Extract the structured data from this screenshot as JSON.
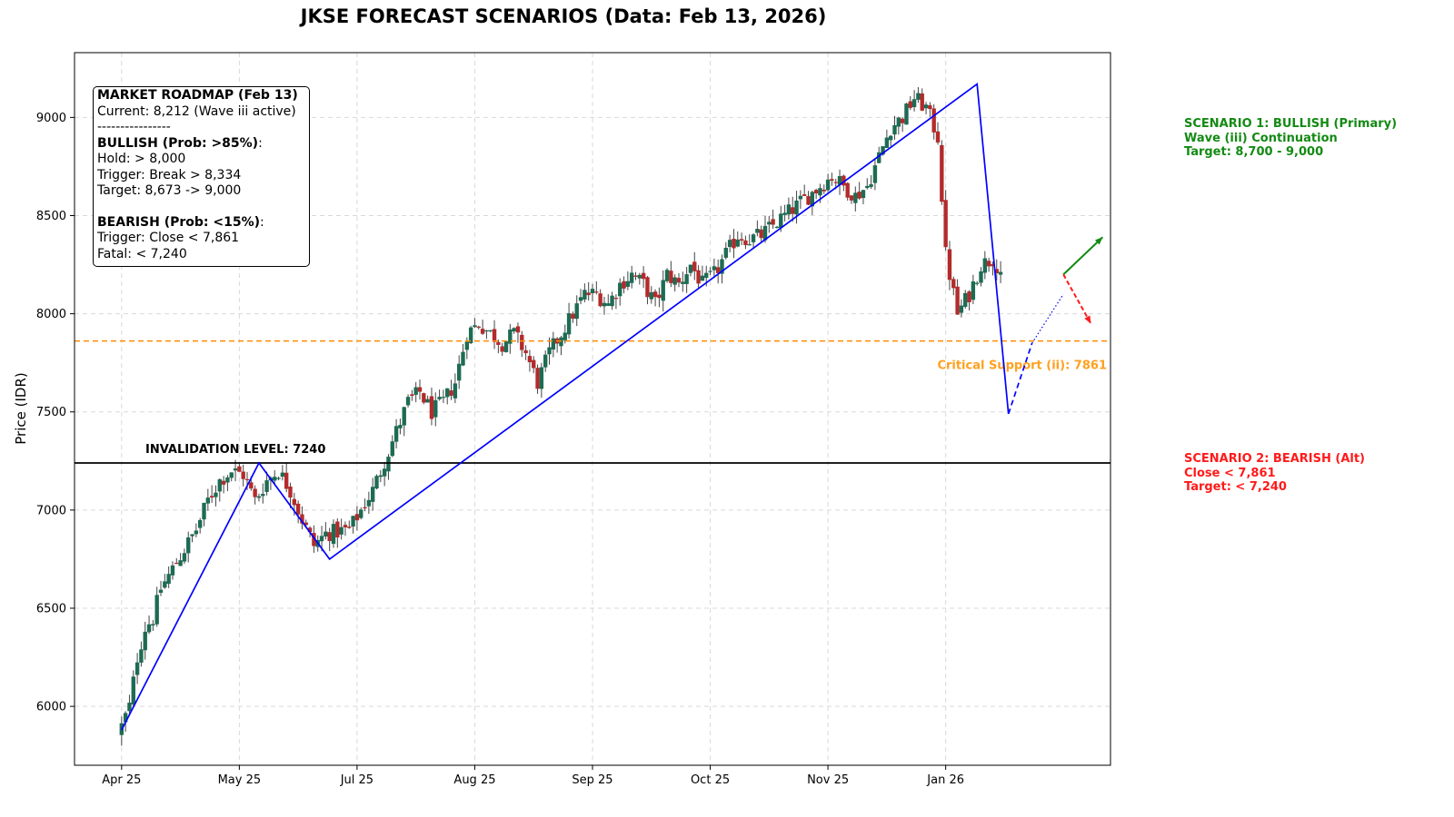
{
  "chart_data": {
    "type": "candlestick",
    "title": "JKSE FORECAST SCENARIOS (Data: Feb 13, 2026)",
    "ylabel": "Price (IDR)",
    "xlabel": "",
    "ylim": [
      5700,
      9330
    ],
    "y_ticks": [
      6000,
      6500,
      7000,
      7500,
      8000,
      8500,
      9000
    ],
    "x_ticks": [
      "Apr 25",
      "May 25",
      "Jul 25",
      "Aug 25",
      "Sep 25",
      "Oct 25",
      "Nov 25",
      "Jan 26"
    ],
    "x_tick_days": [
      0,
      30,
      60,
      90,
      120,
      150,
      180,
      210
    ],
    "x_range_days": [
      -12,
      252
    ],
    "grid": true,
    "up_color": "#1e6b54",
    "down_color": "#b32b2b",
    "ohlc_anchors": [
      [
        0,
        5900
      ],
      [
        2,
        6000
      ],
      [
        4,
        6250
      ],
      [
        6,
        6400
      ],
      [
        8,
        6450
      ],
      [
        10,
        6600
      ],
      [
        13,
        6700
      ],
      [
        16,
        6800
      ],
      [
        19,
        6900
      ],
      [
        22,
        7050
      ],
      [
        25,
        7150
      ],
      [
        28,
        7200
      ],
      [
        31,
        7180
      ],
      [
        34,
        7050
      ],
      [
        37,
        7150
      ],
      [
        40,
        7200
      ],
      [
        43,
        7100
      ],
      [
        46,
        6950
      ],
      [
        49,
        6820
      ],
      [
        52,
        6880
      ],
      [
        55,
        6890
      ],
      [
        58,
        6900
      ],
      [
        61,
        7000
      ],
      [
        64,
        7100
      ],
      [
        67,
        7250
      ],
      [
        70,
        7400
      ],
      [
        73,
        7550
      ],
      [
        76,
        7600
      ],
      [
        79,
        7500
      ],
      [
        82,
        7550
      ],
      [
        85,
        7650
      ],
      [
        88,
        7900
      ],
      [
        91,
        7950
      ],
      [
        94,
        7900
      ],
      [
        97,
        7850
      ],
      [
        100,
        7900
      ],
      [
        103,
        7800
      ],
      [
        106,
        7650
      ],
      [
        109,
        7800
      ],
      [
        112,
        7900
      ],
      [
        115,
        8000
      ],
      [
        118,
        8100
      ],
      [
        121,
        8100
      ],
      [
        124,
        8050
      ],
      [
        127,
        8150
      ],
      [
        130,
        8200
      ],
      [
        133,
        8150
      ],
      [
        136,
        8050
      ],
      [
        139,
        8200
      ],
      [
        142,
        8150
      ],
      [
        145,
        8250
      ],
      [
        148,
        8150
      ],
      [
        151,
        8200
      ],
      [
        154,
        8300
      ],
      [
        157,
        8400
      ],
      [
        160,
        8380
      ],
      [
        163,
        8400
      ],
      [
        166,
        8450
      ],
      [
        169,
        8500
      ],
      [
        172,
        8550
      ],
      [
        175,
        8600
      ],
      [
        178,
        8650
      ],
      [
        181,
        8700
      ],
      [
        184,
        8650
      ],
      [
        187,
        8600
      ],
      [
        190,
        8650
      ],
      [
        193,
        8800
      ],
      [
        196,
        8950
      ],
      [
        199,
        9000
      ],
      [
        202,
        9100
      ],
      [
        205,
        9050
      ],
      [
        208,
        8900
      ],
      [
        210,
        8300
      ],
      [
        213,
        8000
      ],
      [
        216,
        8100
      ],
      [
        219,
        8250
      ],
      [
        222,
        8280
      ],
      [
        224,
        8220
      ]
    ],
    "price_lines": [
      {
        "name": "Invalidation Level",
        "value": 7240,
        "label": "INVALIDATION LEVEL: 7240",
        "color": "#000000",
        "style": "solid"
      },
      {
        "name": "Critical Support (ii)",
        "value": 7861,
        "label": "Critical Support (ii): 7861",
        "color": "#ff8c00",
        "style": "dashed"
      }
    ],
    "wave_path": [
      [
        0,
        5880
      ],
      [
        35,
        7240
      ],
      [
        53,
        6750
      ],
      [
        218,
        9170
      ],
      [
        226,
        7490
      ]
    ],
    "wave_projection": [
      [
        226,
        7490
      ],
      [
        232,
        7850
      ]
    ],
    "wave_dotted": [
      [
        232,
        7850
      ],
      [
        240,
        8100
      ]
    ],
    "scenario_arrows": [
      {
        "name": "bullish",
        "color": "#138a13",
        "from": [
          240,
          8200
        ],
        "to": [
          250,
          8390
        ]
      },
      {
        "name": "bearish",
        "color": "#ff1a1a",
        "from": [
          240,
          8200
        ],
        "to": [
          247,
          7950
        ]
      }
    ]
  },
  "roadmap": {
    "title": "MARKET ROADMAP (Feb 13)",
    "current": "Current: 8,212 (Wave iii active)",
    "divider": "----------------",
    "bullish_head": "BULLISH (Prob: >85%)",
    "bullish_colon": ":",
    "hold": "Hold: > 8,000",
    "trigger_bull": "Trigger: Break > 8,334",
    "target_bull": "Target: 8,673 -> 9,000",
    "bearish_head": "BEARISH (Prob: <15%)",
    "bearish_colon": ":",
    "trigger_bear": "Trigger: Close < 7,861",
    "fatal": "Fatal: < 7,240"
  },
  "scenarios": {
    "s1": {
      "line1": "SCENARIO 1: BULLISH (Primary)",
      "line2": "Wave (iii) Continuation",
      "line3": "Target: 8,700 - 9,000",
      "color": "#138a13"
    },
    "s2": {
      "line1": "SCENARIO 2: BEARISH (Alt)",
      "line2": "Close < 7,861",
      "line3": "Target: < 7,240",
      "color": "#ff1a1a"
    }
  }
}
